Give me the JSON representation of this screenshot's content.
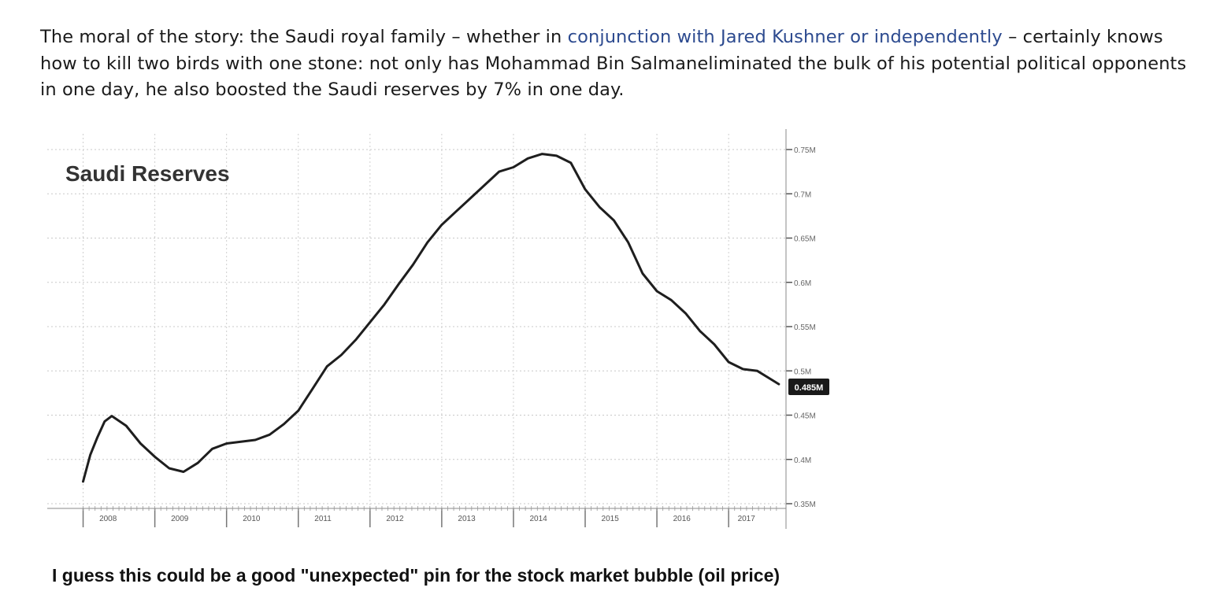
{
  "article": {
    "para_part1": "The moral of the story: the Saudi royal family – whether in ",
    "link_text": "conjunction with Jared Kushner or independently",
    "para_part2": " – certainly knows how to kill two birds with one stone: not only has Mohammad Bin Salmaneliminated the bulk of his potential political opponents in one day, he also boosted the Saudi reserves by 7% in one day.",
    "link_color": "#2c4a8f"
  },
  "chart_data": {
    "type": "line",
    "title": "Saudi Reserves",
    "xlabel": "",
    "ylabel": "",
    "ylim": [
      0.35,
      0.75
    ],
    "grid": true,
    "y_tick_labels": [
      "0.75M",
      "0.7M",
      "0.65M",
      "0.6M",
      "0.55M",
      "0.5M",
      "0.45M",
      "0.4M",
      "0.35M"
    ],
    "y_tick_values": [
      0.75,
      0.7,
      0.65,
      0.6,
      0.55,
      0.5,
      0.45,
      0.4,
      0.35
    ],
    "x_tick_labels": [
      "2008",
      "2009",
      "2010",
      "2011",
      "2012",
      "2013",
      "2014",
      "2015",
      "2016",
      "2017"
    ],
    "last_value_label": "0.485M",
    "series": [
      {
        "x": [
          2008.0,
          2008.1,
          2008.2,
          2008.3,
          2008.4,
          2008.6,
          2008.8,
          2009.0,
          2009.2,
          2009.4,
          2009.6,
          2009.8,
          2010.0,
          2010.2,
          2010.4,
          2010.6,
          2010.8,
          2011.0,
          2011.2,
          2011.4,
          2011.6,
          2011.8,
          2012.0,
          2012.2,
          2012.4,
          2012.6,
          2012.8,
          2013.0,
          2013.2,
          2013.4,
          2013.6,
          2013.8,
          2014.0,
          2014.2,
          2014.4,
          2014.6,
          2014.8,
          2015.0,
          2015.2,
          2015.4,
          2015.6,
          2015.8,
          2016.0,
          2016.2,
          2016.4,
          2016.6,
          2016.8,
          2017.0,
          2017.2,
          2017.4,
          2017.6,
          2017.7
        ],
        "y": [
          0.375,
          0.405,
          0.425,
          0.443,
          0.449,
          0.438,
          0.418,
          0.403,
          0.39,
          0.386,
          0.396,
          0.412,
          0.418,
          0.42,
          0.422,
          0.428,
          0.44,
          0.455,
          0.48,
          0.505,
          0.518,
          0.535,
          0.555,
          0.575,
          0.598,
          0.62,
          0.645,
          0.665,
          0.68,
          0.695,
          0.71,
          0.725,
          0.73,
          0.74,
          0.745,
          0.743,
          0.735,
          0.705,
          0.685,
          0.67,
          0.645,
          0.61,
          0.59,
          0.58,
          0.565,
          0.545,
          0.53,
          0.51,
          0.502,
          0.5,
          0.49,
          0.485
        ]
      }
    ]
  },
  "caption": {
    "text": "I guess this could be a good \"unexpected\" pin for the stock market bubble (oil price)"
  }
}
